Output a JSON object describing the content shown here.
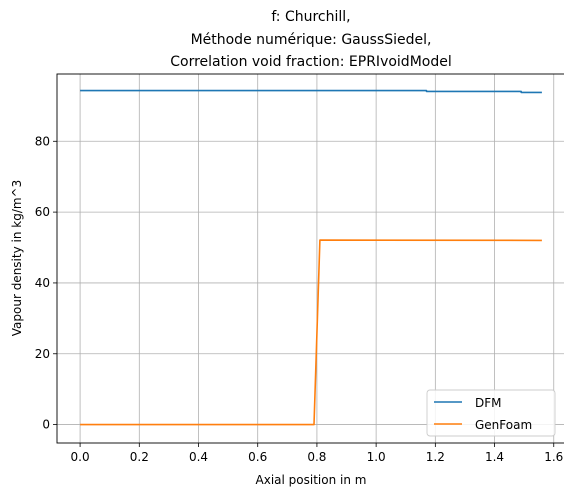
{
  "chart_data": {
    "type": "line",
    "title_lines": [
      "f: Churchill,",
      "Méthode numérique: GaussSiedel,",
      "Correlation void fraction: EPRIvoidModel"
    ],
    "xlabel": "Axial position in m",
    "ylabel": "Vapour density in kg/m^3",
    "xlim": [
      -0.078,
      1.638
    ],
    "ylim": [
      -5.2,
      99.0
    ],
    "x_ticks": [
      0.0,
      0.2,
      0.4,
      0.6,
      0.8,
      1.0,
      1.2,
      1.4,
      1.6
    ],
    "x_tick_labels": [
      "0.0",
      "0.2",
      "0.4",
      "0.6",
      "0.8",
      "1.0",
      "1.2",
      "1.4",
      "1.6"
    ],
    "y_ticks": [
      0,
      20,
      40,
      60,
      80
    ],
    "y_tick_labels": [
      "0",
      "20",
      "40",
      "60",
      "80"
    ],
    "grid": true,
    "legend_position": "lower-right",
    "series": [
      {
        "name": "DFM",
        "color": "#1f77b4",
        "x": [
          0.0,
          1.17,
          1.17,
          1.49,
          1.49,
          1.56
        ],
        "y": [
          94.3,
          94.3,
          94.1,
          94.1,
          93.8,
          93.8
        ]
      },
      {
        "name": "GenFoam",
        "color": "#ff7f0e",
        "x": [
          0.0,
          0.79,
          0.81,
          1.56
        ],
        "y": [
          0.0,
          0.0,
          52.1,
          52.0
        ]
      }
    ]
  }
}
